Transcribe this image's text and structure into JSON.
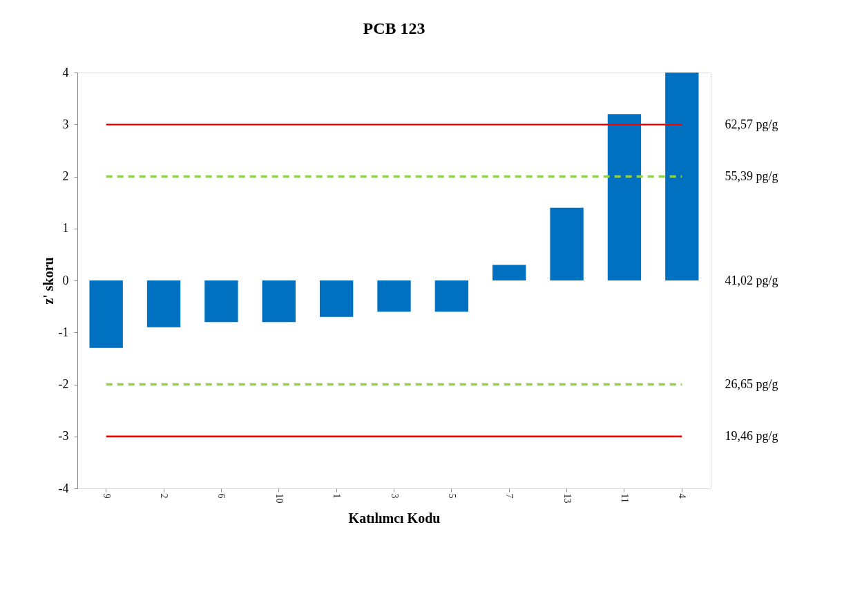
{
  "chart_data": {
    "type": "bar",
    "title": "PCB 123",
    "xlabel": "Katılımcı Kodu",
    "ylabel": "z' skoru",
    "categories": [
      "9",
      "2",
      "6",
      "10",
      "1",
      "3",
      "5",
      "7",
      "13",
      "11",
      "4"
    ],
    "series": [
      {
        "color": "#0070c0",
        "values": [
          -1.3,
          -0.9,
          -0.8,
          -0.8,
          -0.7,
          -0.6,
          -0.6,
          0.3,
          1.4,
          3.2,
          4
        ]
      }
    ],
    "ylim": [
      -4,
      4
    ],
    "yticks": [
      -4,
      -3,
      -2,
      -1,
      0,
      1,
      2,
      3,
      4
    ],
    "y2lim": [
      12.28,
      69.76
    ],
    "y2ticks": [
      {
        "value": 62.57,
        "label": "62,57 pg/g"
      },
      {
        "value": 55.39,
        "label": "55,39 pg/g"
      },
      {
        "value": 41.02,
        "label": "41,02 pg/g"
      },
      {
        "value": 26.65,
        "label": "26,65 pg/g"
      },
      {
        "value": 19.46,
        "label": "19,46 pg/g"
      }
    ],
    "ref_lines": [
      {
        "axis": "y",
        "value": 3,
        "color": "#ff0000",
        "line_style": "solid"
      },
      {
        "axis": "y",
        "value": 2,
        "color": "#92d050",
        "line_style": "dashed"
      },
      {
        "axis": "y",
        "value": -2,
        "color": "#92d050",
        "line_style": "dashed"
      },
      {
        "axis": "y",
        "value": -3,
        "color": "#ff0000",
        "line_style": "solid"
      }
    ],
    "grid": false
  }
}
